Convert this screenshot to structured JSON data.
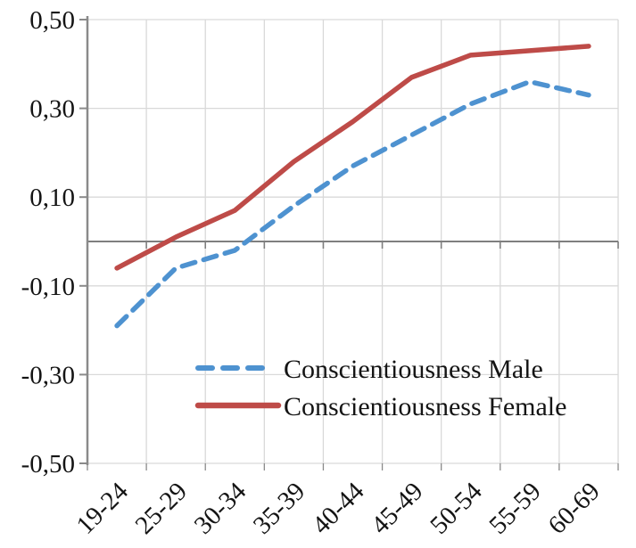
{
  "chart_data": {
    "type": "line",
    "title": "",
    "categories": [
      "19-24",
      "25-29",
      "30-34",
      "35-39",
      "40-44",
      "45-49",
      "50-54",
      "55-59",
      "60-69"
    ],
    "series": [
      {
        "name": "Conscientiousness Male",
        "color": "#4E92D0",
        "style": "dashed",
        "values": [
          -0.19,
          -0.06,
          -0.02,
          0.08,
          0.17,
          0.24,
          0.31,
          0.36,
          0.33
        ]
      },
      {
        "name": "Conscientiousness Female",
        "color": "#BE4B48",
        "style": "solid",
        "values": [
          -0.06,
          0.01,
          0.07,
          0.18,
          0.27,
          0.37,
          0.42,
          0.43,
          0.44
        ]
      }
    ],
    "y_axis": {
      "min": -0.5,
      "max": 0.5,
      "step": 0.2,
      "tick_values": [
        0.5,
        0.3,
        0.1,
        -0.1,
        -0.3,
        -0.5
      ],
      "tick_labels": [
        "0,50",
        "0,30",
        "0,10",
        "-0,10",
        "-0,30",
        "-0,50"
      ],
      "decimal_separator": ","
    },
    "x_axis": {
      "tick_label_rotation_deg": -45
    },
    "grid": true,
    "legend_position": "inside-bottom-center",
    "colors": {
      "gridline": "#D9D9D9",
      "axis": "#8A8A8A",
      "zero_line": "#7F7F7F",
      "text": "#141414"
    }
  }
}
